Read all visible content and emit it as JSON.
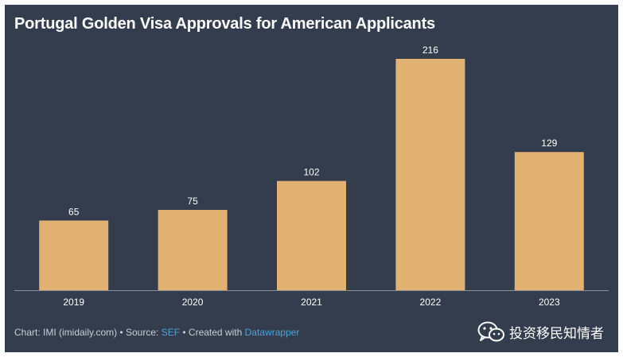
{
  "chart_data": {
    "type": "bar",
    "title": "Portugal Golden Visa Approvals for American Applicants",
    "categories": [
      "2019",
      "2020",
      "2021",
      "2022",
      "2023"
    ],
    "values": [
      65,
      75,
      102,
      216,
      129
    ],
    "xlabel": "",
    "ylabel": "",
    "ylim": [
      0,
      216
    ],
    "grid": false,
    "data_labels": true
  },
  "footer": {
    "prefix": "Chart: IMI (imidaily.com) • Source: ",
    "source_link": "SEF",
    "middle": " • Created with ",
    "tool_link": "Datawrapper"
  },
  "watermark": {
    "text": "投资移民知情者",
    "icon": "wechat-icon"
  },
  "colors": {
    "background": "#343d4e",
    "bar": "#e1b271",
    "text": "#ffffff",
    "link": "#4da3d9"
  }
}
